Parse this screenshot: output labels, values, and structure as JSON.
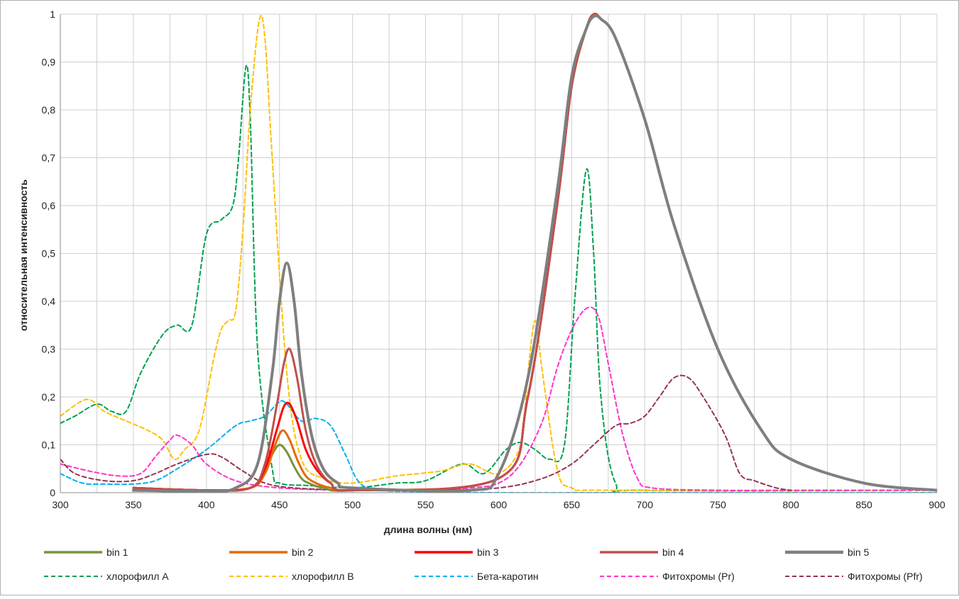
{
  "chart_data": {
    "type": "line",
    "title": "",
    "xlabel": "длина волны (нм)",
    "ylabel": "относительная интенсивность",
    "xlim": [
      300,
      900
    ],
    "ylim": [
      0,
      1
    ],
    "x_ticks": [
      300,
      350,
      400,
      450,
      500,
      550,
      600,
      650,
      700,
      750,
      800,
      850,
      900
    ],
    "y_ticks": [
      0,
      0.1,
      0.2,
      0.3,
      0.4,
      0.5,
      0.6,
      0.7,
      0.8,
      0.9,
      1
    ],
    "y_tick_labels": [
      "0",
      "0,1",
      "0,2",
      "0,3",
      "0,4",
      "0,5",
      "0,6",
      "0,7",
      "0,8",
      "0,9",
      "1"
    ],
    "grid": true,
    "legend_position": "bottom",
    "series": [
      {
        "name": "bin 1",
        "color": "#77933c",
        "style": "solid",
        "width": 3,
        "x": [
          350,
          400,
          430,
          440,
          445,
          450,
          455,
          460,
          465,
          470,
          480,
          500,
          600,
          620,
          640,
          650,
          660,
          665,
          670,
          680,
          700,
          720,
          750,
          780,
          800,
          850,
          900
        ],
        "y": [
          0.01,
          0.005,
          0.01,
          0.04,
          0.08,
          0.1,
          0.085,
          0.055,
          0.03,
          0.02,
          0.01,
          0.005,
          0.03,
          0.2,
          0.6,
          0.85,
          0.97,
          1.0,
          0.99,
          0.95,
          0.78,
          0.56,
          0.3,
          0.13,
          0.07,
          0.02,
          0.005
        ]
      },
      {
        "name": "bin 2",
        "color": "#e36c09",
        "style": "solid",
        "width": 3,
        "x": [
          350,
          400,
          430,
          440,
          447,
          452,
          457,
          462,
          468,
          475,
          485,
          500,
          600,
          620,
          640,
          650,
          660,
          665,
          670,
          680,
          700,
          720,
          750,
          780,
          800,
          850,
          900
        ],
        "y": [
          0.01,
          0.005,
          0.01,
          0.04,
          0.1,
          0.13,
          0.11,
          0.07,
          0.035,
          0.02,
          0.01,
          0.005,
          0.03,
          0.2,
          0.6,
          0.85,
          0.97,
          1.0,
          0.99,
          0.95,
          0.78,
          0.56,
          0.3,
          0.13,
          0.07,
          0.02,
          0.005
        ]
      },
      {
        "name": "bin 3",
        "color": "#ff0000",
        "style": "solid",
        "width": 3,
        "x": [
          350,
          400,
          430,
          440,
          448,
          453,
          457,
          462,
          468,
          475,
          485,
          500,
          600,
          620,
          640,
          650,
          660,
          665,
          670,
          680,
          700,
          720,
          750,
          780,
          800,
          850,
          900
        ],
        "y": [
          0.01,
          0.005,
          0.01,
          0.05,
          0.13,
          0.18,
          0.185,
          0.15,
          0.09,
          0.05,
          0.02,
          0.005,
          0.03,
          0.2,
          0.6,
          0.85,
          0.97,
          1.0,
          0.99,
          0.95,
          0.78,
          0.56,
          0.3,
          0.13,
          0.07,
          0.02,
          0.005
        ]
      },
      {
        "name": "bin 4",
        "color": "#c0504d",
        "style": "solid",
        "width": 3,
        "x": [
          350,
          400,
          430,
          440,
          448,
          453,
          457,
          462,
          468,
          475,
          485,
          500,
          600,
          620,
          640,
          650,
          660,
          665,
          670,
          680,
          700,
          720,
          750,
          780,
          800,
          850,
          900
        ],
        "y": [
          0.01,
          0.005,
          0.01,
          0.06,
          0.18,
          0.27,
          0.3,
          0.24,
          0.13,
          0.06,
          0.02,
          0.005,
          0.03,
          0.2,
          0.6,
          0.85,
          0.97,
          1.0,
          0.99,
          0.95,
          0.78,
          0.56,
          0.3,
          0.13,
          0.07,
          0.02,
          0.005
        ]
      },
      {
        "name": "bin 5",
        "color": "#7f7f7f",
        "style": "solid",
        "width": 4,
        "x": [
          350,
          400,
          420,
          435,
          445,
          450,
          455,
          460,
          465,
          472,
          480,
          490,
          500,
          580,
          600,
          620,
          640,
          650,
          660,
          665,
          670,
          680,
          700,
          720,
          750,
          780,
          800,
          850,
          900
        ],
        "y": [
          0.005,
          0.003,
          0.01,
          0.06,
          0.25,
          0.4,
          0.48,
          0.4,
          0.25,
          0.12,
          0.05,
          0.02,
          0.01,
          0.005,
          0.04,
          0.24,
          0.63,
          0.87,
          0.97,
          0.995,
          0.99,
          0.95,
          0.78,
          0.56,
          0.3,
          0.13,
          0.07,
          0.02,
          0.005
        ]
      },
      {
        "name": "хлорофилл А",
        "color": "#00a050",
        "style": "dashed",
        "width": 2,
        "x": [
          300,
          310,
          325,
          335,
          345,
          355,
          370,
          380,
          390,
          400,
          410,
          418,
          422,
          427,
          430,
          435,
          445,
          450,
          470,
          500,
          530,
          550,
          575,
          590,
          605,
          615,
          625,
          635,
          645,
          652,
          660,
          665,
          670,
          680,
          700,
          900
        ],
        "y": [
          0.145,
          0.16,
          0.185,
          0.17,
          0.17,
          0.25,
          0.33,
          0.35,
          0.35,
          0.54,
          0.57,
          0.6,
          0.7,
          0.89,
          0.78,
          0.3,
          0.05,
          0.02,
          0.015,
          0.01,
          0.02,
          0.025,
          0.06,
          0.04,
          0.09,
          0.105,
          0.09,
          0.07,
          0.1,
          0.4,
          0.675,
          0.5,
          0.2,
          0.02,
          0.005,
          0.005
        ]
      },
      {
        "name": "хлорофилл В",
        "color": "#ffc000",
        "style": "dashed",
        "width": 2,
        "x": [
          300,
          318,
          330,
          345,
          360,
          370,
          378,
          385,
          395,
          405,
          410,
          415,
          420,
          425,
          430,
          436,
          440,
          445,
          455,
          465,
          480,
          500,
          530,
          560,
          580,
          600,
          615,
          620,
          625,
          630,
          640,
          650,
          680,
          900
        ],
        "y": [
          0.16,
          0.195,
          0.17,
          0.15,
          0.13,
          0.11,
          0.07,
          0.09,
          0.13,
          0.28,
          0.34,
          0.36,
          0.38,
          0.55,
          0.8,
          0.985,
          0.95,
          0.7,
          0.25,
          0.07,
          0.03,
          0.02,
          0.035,
          0.045,
          0.06,
          0.04,
          0.1,
          0.25,
          0.36,
          0.25,
          0.05,
          0.01,
          0.005,
          0.005
        ]
      },
      {
        "name": "Бета-каротин",
        "color": "#00b0f0",
        "style": "dashed",
        "width": 2,
        "x": [
          300,
          315,
          330,
          350,
          365,
          380,
          400,
          420,
          430,
          440,
          450,
          455,
          465,
          475,
          485,
          495,
          505,
          520,
          550,
          600,
          700,
          900
        ],
        "y": [
          0.04,
          0.02,
          0.018,
          0.018,
          0.025,
          0.05,
          0.09,
          0.14,
          0.15,
          0.16,
          0.19,
          0.185,
          0.15,
          0.155,
          0.14,
          0.08,
          0.02,
          0.005,
          0.002,
          0.0,
          0.0,
          0.0
        ]
      },
      {
        "name": "Фитохромы (Pr)",
        "color": "#ff33cc",
        "style": "dashed",
        "width": 2,
        "x": [
          300,
          320,
          340,
          355,
          365,
          375,
          380,
          390,
          400,
          420,
          450,
          500,
          550,
          580,
          600,
          615,
          630,
          640,
          650,
          660,
          668,
          675,
          685,
          695,
          705,
          750,
          800,
          900
        ],
        "y": [
          0.06,
          0.045,
          0.035,
          0.04,
          0.075,
          0.11,
          0.12,
          0.1,
          0.06,
          0.025,
          0.01,
          0.005,
          0.005,
          0.01,
          0.02,
          0.06,
          0.15,
          0.26,
          0.34,
          0.385,
          0.37,
          0.27,
          0.12,
          0.03,
          0.01,
          0.005,
          0.005,
          0.005
        ]
      },
      {
        "name": "Фитохромы (Pfr)",
        "color": "#953553",
        "style": "dashed",
        "width": 2,
        "x": [
          300,
          310,
          330,
          350,
          365,
          380,
          400,
          410,
          425,
          440,
          460,
          500,
          550,
          600,
          630,
          650,
          665,
          680,
          690,
          700,
          710,
          720,
          730,
          740,
          755,
          765,
          775,
          790,
          800
        ],
        "y": [
          0.07,
          0.04,
          0.025,
          0.025,
          0.04,
          0.06,
          0.08,
          0.075,
          0.045,
          0.02,
          0.01,
          0.005,
          0.005,
          0.01,
          0.03,
          0.06,
          0.1,
          0.14,
          0.145,
          0.16,
          0.2,
          0.24,
          0.24,
          0.2,
          0.12,
          0.04,
          0.025,
          0.01,
          0.005
        ]
      }
    ]
  }
}
